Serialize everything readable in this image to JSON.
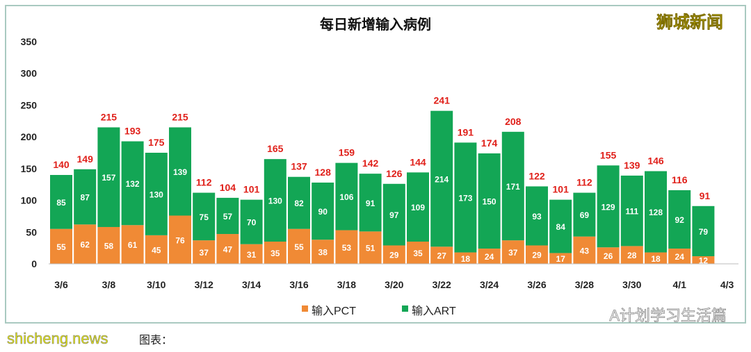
{
  "chart_data": {
    "type": "bar",
    "stacked": true,
    "title": "每日新增输入病例",
    "categories": [
      "3/6",
      "3/7",
      "3/8",
      "3/9",
      "3/10",
      "3/11",
      "3/12",
      "3/13",
      "3/14",
      "3/15",
      "3/16",
      "3/17",
      "3/18",
      "3/19",
      "3/20",
      "3/21",
      "3/22",
      "3/23",
      "3/24",
      "3/25",
      "3/26",
      "3/27",
      "3/28",
      "3/29",
      "3/30",
      "3/31",
      "4/1",
      "4/2"
    ],
    "x_tick_labels": [
      "3/6",
      "3/8",
      "3/10",
      "3/12",
      "3/14",
      "3/16",
      "3/18",
      "3/20",
      "3/22",
      "3/24",
      "3/26",
      "3/28",
      "3/30",
      "4/1",
      "4/3"
    ],
    "series": [
      {
        "name": "输入PCT",
        "color": "#f08a35",
        "values": [
          55,
          62,
          58,
          61,
          45,
          76,
          37,
          47,
          31,
          35,
          55,
          38,
          53,
          51,
          29,
          35,
          27,
          18,
          24,
          37,
          29,
          17,
          43,
          26,
          28,
          18,
          24,
          12
        ]
      },
      {
        "name": "输入ART",
        "color": "#13a655",
        "values": [
          85,
          87,
          157,
          132,
          130,
          139,
          75,
          57,
          70,
          130,
          82,
          90,
          106,
          91,
          97,
          109,
          214,
          173,
          150,
          171,
          93,
          84,
          69,
          129,
          111,
          128,
          92,
          79
        ]
      }
    ],
    "totals": [
      140,
      149,
      215,
      193,
      175,
      215,
      112,
      104,
      101,
      165,
      137,
      128,
      159,
      142,
      126,
      144,
      241,
      191,
      174,
      208,
      122,
      101,
      112,
      155,
      139,
      146,
      116,
      91
    ],
    "ylim": [
      0,
      350
    ],
    "y_ticks": [
      0,
      50,
      100,
      150,
      200,
      250,
      300,
      350
    ],
    "xlabel": "",
    "ylabel": "",
    "grid": false,
    "legend": "bottom-center"
  },
  "logo": "狮城新闻",
  "watermark_wechat": "A计划学习生活篇",
  "watermark_site": "shicheng.news",
  "caption": "图表："
}
